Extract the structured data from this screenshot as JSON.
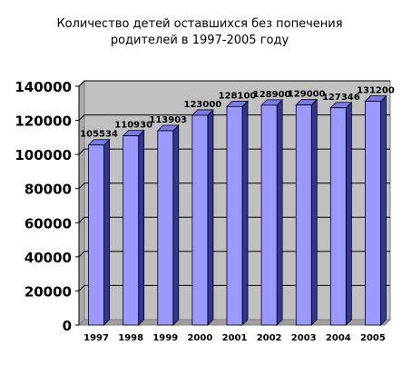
{
  "chart_data": {
    "type": "bar",
    "title": "Количество детей оставшихся без попечения родителей в 1997-2005 году",
    "title_lines": [
      "Количество детей оставшихся без попечения",
      "родителей в 1997-2005 году"
    ],
    "xlabel": "",
    "ylabel": "",
    "categories": [
      "1997",
      "1998",
      "1999",
      "2000",
      "2001",
      "2002",
      "2003",
      "2004",
      "2005"
    ],
    "values": [
      105534,
      110930,
      113903,
      123000,
      128100,
      128900,
      129000,
      127346,
      131200
    ],
    "value_labels": [
      "105534",
      "110930",
      "113903",
      "123000",
      "128100",
      "128900",
      "129000",
      "127346",
      "131200"
    ],
    "ylim": [
      0,
      140000
    ],
    "yticks": [
      0,
      20000,
      40000,
      60000,
      80000,
      100000,
      120000,
      140000
    ],
    "ytick_labels": [
      "0",
      "20000",
      "40000",
      "60000",
      "80000",
      "100000",
      "120000",
      "140000"
    ],
    "grid": true,
    "legend": "none",
    "colors": {
      "bar_front": "#9999ff",
      "bar_side": "#333399",
      "bar_top": "#7a7ae6",
      "wall": "#c0c0c0",
      "gridline": "#000000"
    }
  }
}
